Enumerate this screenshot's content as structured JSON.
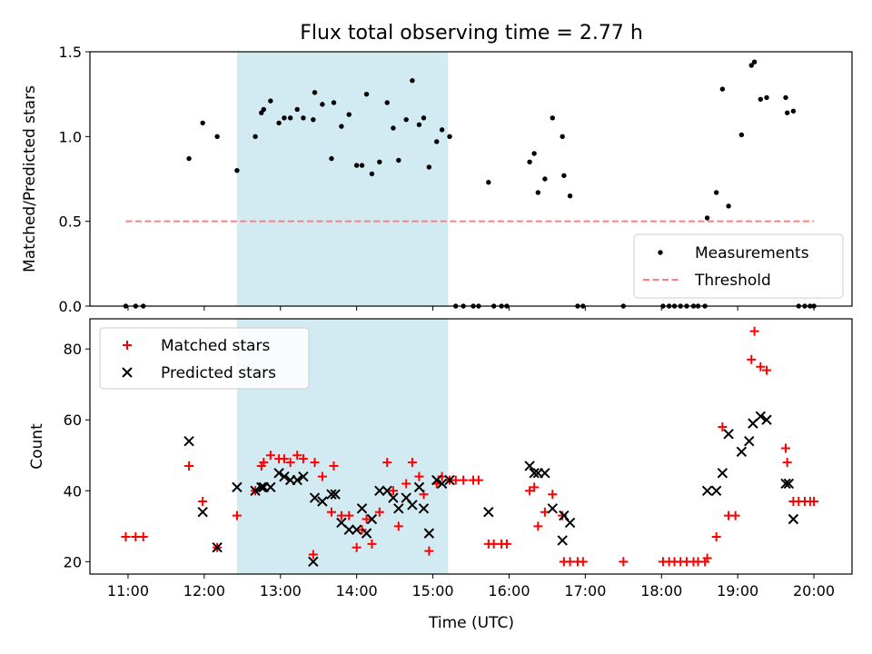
{
  "title": "Flux total observing time = 2.77 h",
  "xlabel": "Time (UTC)",
  "x_ticks": [
    {
      "value": 11,
      "label": "11:00"
    },
    {
      "value": 12,
      "label": "12:00"
    },
    {
      "value": 13,
      "label": "13:00"
    },
    {
      "value": 14,
      "label": "14:00"
    },
    {
      "value": 15,
      "label": "15:00"
    },
    {
      "value": 16,
      "label": "16:00"
    },
    {
      "value": 17,
      "label": "17:00"
    },
    {
      "value": 18,
      "label": "18:00"
    },
    {
      "value": 19,
      "label": "19:00"
    },
    {
      "value": 20,
      "label": "20:00"
    }
  ],
  "colors": {
    "shade": "#add8e6",
    "measurement": "#000000",
    "threshold": "#ff7f7f",
    "matched": "#ff0000",
    "predicted": "#000000"
  },
  "chart_data": [
    {
      "type": "scatter",
      "ylabel": "Matched/Predicted stars",
      "xlim": [
        10.5,
        20.5
      ],
      "ylim": [
        0,
        1.5
      ],
      "y_ticks": [
        {
          "value": 0.0,
          "label": "0.0"
        },
        {
          "value": 0.5,
          "label": "0.5"
        },
        {
          "value": 1.0,
          "label": "1.0"
        },
        {
          "value": 1.5,
          "label": "1.5"
        }
      ],
      "shaded_span": [
        12.43,
        15.2
      ],
      "threshold": {
        "name": "Threshold",
        "value": 0.5,
        "x": [
          10.97,
          20.0
        ]
      },
      "legend_position": "lower-right",
      "series": [
        {
          "name": "Measurements",
          "points": [
            [
              10.97,
              0
            ],
            [
              11.1,
              0
            ],
            [
              11.2,
              0
            ],
            [
              11.8,
              0.87
            ],
            [
              11.98,
              1.08
            ],
            [
              12.17,
              1.0
            ],
            [
              12.43,
              0.8
            ],
            [
              12.67,
              1.0
            ],
            [
              12.75,
              1.14
            ],
            [
              12.78,
              1.16
            ],
            [
              12.87,
              1.21
            ],
            [
              12.98,
              1.08
            ],
            [
              13.05,
              1.11
            ],
            [
              13.13,
              1.11
            ],
            [
              13.22,
              1.16
            ],
            [
              13.3,
              1.11
            ],
            [
              13.43,
              1.1
            ],
            [
              13.45,
              1.26
            ],
            [
              13.55,
              1.19
            ],
            [
              13.67,
              0.87
            ],
            [
              13.7,
              1.2
            ],
            [
              13.8,
              1.06
            ],
            [
              13.9,
              1.13
            ],
            [
              14.0,
              0.83
            ],
            [
              14.07,
              0.83
            ],
            [
              14.13,
              1.25
            ],
            [
              14.2,
              0.78
            ],
            [
              14.3,
              0.85
            ],
            [
              14.4,
              1.2
            ],
            [
              14.48,
              1.05
            ],
            [
              14.55,
              0.86
            ],
            [
              14.65,
              1.1
            ],
            [
              14.73,
              1.33
            ],
            [
              14.82,
              1.07
            ],
            [
              14.88,
              1.11
            ],
            [
              14.95,
              0.82
            ],
            [
              15.05,
              0.97
            ],
            [
              15.12,
              1.04
            ],
            [
              15.22,
              1.0
            ],
            [
              15.3,
              0
            ],
            [
              15.4,
              0
            ],
            [
              15.53,
              0
            ],
            [
              15.6,
              0
            ],
            [
              15.73,
              0.73
            ],
            [
              15.8,
              0
            ],
            [
              15.9,
              0
            ],
            [
              15.97,
              0
            ],
            [
              16.27,
              0.85
            ],
            [
              16.33,
              0.9
            ],
            [
              16.38,
              0.67
            ],
            [
              16.47,
              0.75
            ],
            [
              16.57,
              1.11
            ],
            [
              16.7,
              1.0
            ],
            [
              16.72,
              0.77
            ],
            [
              16.8,
              0.65
            ],
            [
              16.9,
              0
            ],
            [
              16.97,
              0
            ],
            [
              17.5,
              0
            ],
            [
              18.02,
              0
            ],
            [
              18.1,
              0
            ],
            [
              18.17,
              0
            ],
            [
              18.25,
              0
            ],
            [
              18.33,
              0
            ],
            [
              18.42,
              0
            ],
            [
              18.48,
              0
            ],
            [
              18.57,
              0
            ],
            [
              18.6,
              0.52
            ],
            [
              18.72,
              0.67
            ],
            [
              18.8,
              1.28
            ],
            [
              18.88,
              0.59
            ],
            [
              19.05,
              1.01
            ],
            [
              19.18,
              1.42
            ],
            [
              19.22,
              1.44
            ],
            [
              19.3,
              1.22
            ],
            [
              19.38,
              1.23
            ],
            [
              19.63,
              1.23
            ],
            [
              19.65,
              1.14
            ],
            [
              19.73,
              1.15
            ],
            [
              19.8,
              0
            ],
            [
              19.88,
              0
            ],
            [
              19.95,
              0
            ],
            [
              20.0,
              0
            ]
          ]
        }
      ]
    },
    {
      "type": "scatter",
      "ylabel": "Count",
      "xlim": [
        10.5,
        20.5
      ],
      "ylim": [
        16.5,
        88.5
      ],
      "y_ticks": [
        {
          "value": 20,
          "label": "20"
        },
        {
          "value": 40,
          "label": "40"
        },
        {
          "value": 60,
          "label": "60"
        },
        {
          "value": 80,
          "label": "80"
        }
      ],
      "shaded_span": [
        12.43,
        15.2
      ],
      "legend_position": "upper-left",
      "series": [
        {
          "name": "Matched stars",
          "marker": "plus",
          "points": [
            [
              10.97,
              27
            ],
            [
              11.1,
              27
            ],
            [
              11.2,
              27
            ],
            [
              11.8,
              47
            ],
            [
              11.98,
              37
            ],
            [
              12.17,
              24
            ],
            [
              12.43,
              33
            ],
            [
              12.67,
              40
            ],
            [
              12.75,
              47
            ],
            [
              12.78,
              48
            ],
            [
              12.87,
              50
            ],
            [
              12.98,
              49
            ],
            [
              13.05,
              49
            ],
            [
              13.13,
              48
            ],
            [
              13.22,
              50
            ],
            [
              13.3,
              49
            ],
            [
              13.43,
              22
            ],
            [
              13.45,
              48
            ],
            [
              13.55,
              44
            ],
            [
              13.67,
              34
            ],
            [
              13.7,
              47
            ],
            [
              13.8,
              33
            ],
            [
              13.9,
              33
            ],
            [
              14.0,
              24
            ],
            [
              14.07,
              29
            ],
            [
              14.13,
              32
            ],
            [
              14.2,
              25
            ],
            [
              14.3,
              34
            ],
            [
              14.4,
              48
            ],
            [
              14.48,
              40
            ],
            [
              14.55,
              30
            ],
            [
              14.65,
              42
            ],
            [
              14.73,
              48
            ],
            [
              14.82,
              44
            ],
            [
              14.88,
              39
            ],
            [
              14.95,
              23
            ],
            [
              15.05,
              42
            ],
            [
              15.12,
              44
            ],
            [
              15.22,
              43
            ],
            [
              15.3,
              43
            ],
            [
              15.4,
              43
            ],
            [
              15.53,
              43
            ],
            [
              15.6,
              43
            ],
            [
              15.73,
              25
            ],
            [
              15.8,
              25
            ],
            [
              15.9,
              25
            ],
            [
              15.97,
              25
            ],
            [
              16.27,
              40
            ],
            [
              16.33,
              41
            ],
            [
              16.38,
              30
            ],
            [
              16.47,
              34
            ],
            [
              16.57,
              39
            ],
            [
              16.7,
              33
            ],
            [
              16.72,
              20
            ],
            [
              16.8,
              20
            ],
            [
              16.9,
              20
            ],
            [
              16.97,
              20
            ],
            [
              17.5,
              20
            ],
            [
              18.02,
              20
            ],
            [
              18.1,
              20
            ],
            [
              18.17,
              20
            ],
            [
              18.25,
              20
            ],
            [
              18.33,
              20
            ],
            [
              18.42,
              20
            ],
            [
              18.48,
              20
            ],
            [
              18.57,
              20
            ],
            [
              18.6,
              21
            ],
            [
              18.72,
              27
            ],
            [
              18.8,
              58
            ],
            [
              18.88,
              33
            ],
            [
              18.97,
              33
            ],
            [
              19.18,
              77
            ],
            [
              19.22,
              85
            ],
            [
              19.3,
              75
            ],
            [
              19.38,
              74
            ],
            [
              19.63,
              52
            ],
            [
              19.65,
              48
            ],
            [
              19.73,
              37
            ],
            [
              19.8,
              37
            ],
            [
              19.88,
              37
            ],
            [
              19.95,
              37
            ],
            [
              20.0,
              37
            ]
          ]
        },
        {
          "name": "Predicted stars",
          "marker": "x",
          "points": [
            [
              11.8,
              54
            ],
            [
              11.98,
              34
            ],
            [
              12.17,
              24
            ],
            [
              12.43,
              41
            ],
            [
              12.67,
              40
            ],
            [
              12.75,
              41
            ],
            [
              12.78,
              41
            ],
            [
              12.87,
              41
            ],
            [
              12.98,
              45
            ],
            [
              13.05,
              44
            ],
            [
              13.13,
              43
            ],
            [
              13.22,
              43
            ],
            [
              13.3,
              44
            ],
            [
              13.43,
              20
            ],
            [
              13.45,
              38
            ],
            [
              13.55,
              37
            ],
            [
              13.67,
              39
            ],
            [
              13.72,
              39
            ],
            [
              13.8,
              31
            ],
            [
              13.9,
              29
            ],
            [
              14.0,
              29
            ],
            [
              14.07,
              35
            ],
            [
              14.13,
              28
            ],
            [
              14.2,
              32
            ],
            [
              14.3,
              40
            ],
            [
              14.4,
              40
            ],
            [
              14.48,
              38
            ],
            [
              14.55,
              35
            ],
            [
              14.65,
              38
            ],
            [
              14.73,
              36
            ],
            [
              14.82,
              41
            ],
            [
              14.88,
              35
            ],
            [
              14.95,
              28
            ],
            [
              15.05,
              43
            ],
            [
              15.12,
              42
            ],
            [
              15.22,
              43
            ],
            [
              15.73,
              34
            ],
            [
              16.27,
              47
            ],
            [
              16.33,
              45
            ],
            [
              16.38,
              45
            ],
            [
              16.47,
              45
            ],
            [
              16.57,
              35
            ],
            [
              16.7,
              26
            ],
            [
              16.72,
              33
            ],
            [
              16.8,
              31
            ],
            [
              18.6,
              40
            ],
            [
              18.72,
              40
            ],
            [
              18.8,
              45
            ],
            [
              18.88,
              56
            ],
            [
              19.05,
              51
            ],
            [
              19.15,
              54
            ],
            [
              19.2,
              59
            ],
            [
              19.3,
              61
            ],
            [
              19.38,
              60
            ],
            [
              19.63,
              42
            ],
            [
              19.67,
              42
            ],
            [
              19.73,
              32
            ]
          ]
        }
      ]
    }
  ]
}
